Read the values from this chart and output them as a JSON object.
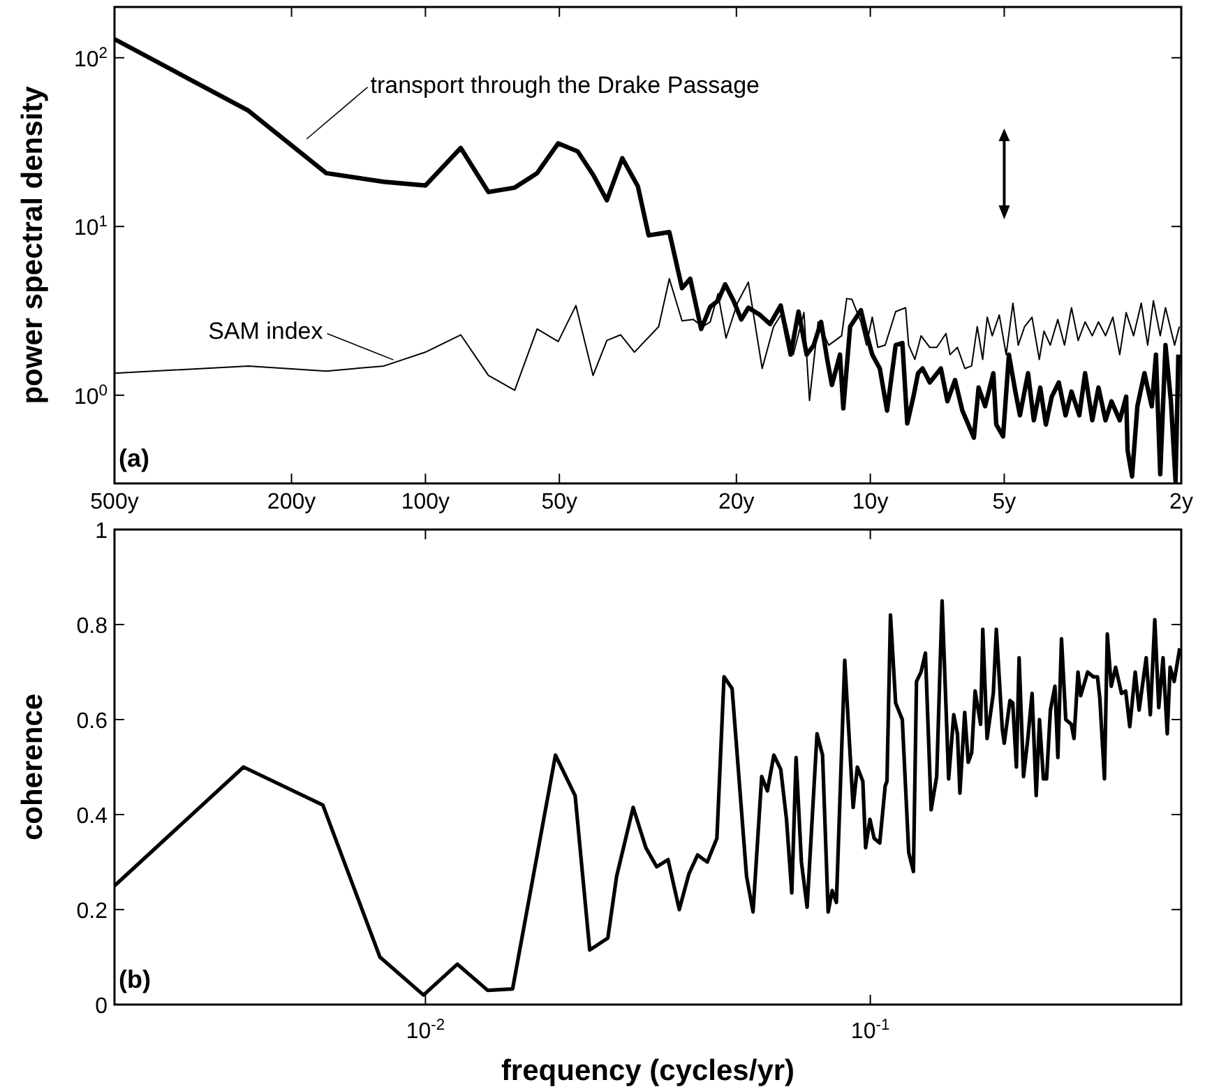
{
  "chart_data": [
    {
      "type": "line",
      "ylabel": "power spectral density",
      "log": "xy",
      "xlim": [
        500,
        2
      ],
      "ylim": [
        0.3,
        200
      ],
      "xticks": [
        {
          "value": 500,
          "label": "500y"
        },
        {
          "value": 200,
          "label": "200y"
        },
        {
          "value": 100,
          "label": "100y"
        },
        {
          "value": 50,
          "label": "50y"
        },
        {
          "value": 20,
          "label": "20y"
        },
        {
          "value": 10,
          "label": "10y"
        },
        {
          "value": 5,
          "label": "5y"
        },
        {
          "value": 2,
          "label": "2y"
        }
      ],
      "yticks": [
        {
          "value": 1,
          "label": "10$^{0}$"
        },
        {
          "value": 10,
          "label": "10$^{1}$"
        },
        {
          "value": 100,
          "label": "10$^{2}$"
        }
      ],
      "annotations": [
        "(a)"
      ],
      "series": [
        {
          "name": "transport through the Drake Passage",
          "color": "#000000",
          "x": [
            500,
            250,
            167,
            124,
            100,
            83.3,
            72.2,
            63.0,
            56.1,
            50.3,
            45.5,
            42.0,
            39.1,
            36.1,
            33.3,
            31.5,
            28.3,
            26.5,
            25.4,
            24.0,
            22.9,
            22.0,
            21.2,
            20.3,
            19.5,
            18.8,
            17.7,
            16.8,
            15.9,
            15.1,
            14.5,
            13.9,
            13.4,
            12.9,
            12.5,
            12.2,
            11.7,
            11.5,
            11.1,
            10.5,
            10.2,
            9.9,
            9.52,
            9.17,
            8.77,
            8.47,
            8.26,
            8.0,
            7.81,
            7.63,
            7.35,
            6.94,
            6.71,
            6.45,
            6.21,
            5.85,
            5.71,
            5.52,
            5.29,
            5.21,
            5.03,
            4.88,
            4.72,
            4.61,
            4.42,
            4.29,
            4.15,
            4.03,
            3.91,
            3.77,
            3.64,
            3.53,
            3.39,
            3.29,
            3.17,
            3.07,
            2.96,
            2.87,
            2.75,
            2.66,
            2.64,
            2.58,
            2.51,
            2.42,
            2.33,
            2.28,
            2.23,
            2.17,
            2.11,
            2.06,
            2.03
          ],
          "values": [
            129,
            48.6,
            20.7,
            18.4,
            17.5,
            29.2,
            16.0,
            17.0,
            20.7,
            31.1,
            27.9,
            20.3,
            14.3,
            25.4,
            17.3,
            8.86,
            9.26,
            4.31,
            4.9,
            2.47,
            3.34,
            3.63,
            4.54,
            3.63,
            2.81,
            3.3,
            2.99,
            2.64,
            3.4,
            1.74,
            3.13,
            1.74,
            1.98,
            2.72,
            1.63,
            1.15,
            1.74,
            0.836,
            2.55,
            3.19,
            2.32,
            1.74,
            1.44,
            0.81,
            1.98,
            2.04,
            0.68,
            0.98,
            1.35,
            1.44,
            1.19,
            1.44,
            0.92,
            1.23,
            0.81,
            0.56,
            1.11,
            0.86,
            1.35,
            0.67,
            0.57,
            1.74,
            1.05,
            0.76,
            1.35,
            0.71,
            1.11,
            0.67,
            0.98,
            1.19,
            0.76,
            1.05,
            0.76,
            1.35,
            0.71,
            1.11,
            0.71,
            0.92,
            0.71,
            0.98,
            0.47,
            0.33,
            0.86,
            1.35,
            0.86,
            1.74,
            0.34,
            1.98,
            0.92,
            0.31,
            1.74
          ]
        },
        {
          "name": "SAM index",
          "color": "#000000",
          "x": [
            500,
            250,
            167,
            124,
            100,
            83.3,
            72.2,
            63.0,
            56.1,
            50.3,
            45.9,
            42.0,
            39.1,
            36.4,
            33.9,
            29.9,
            28.3,
            26.5,
            25.0,
            23.8,
            22.9,
            22.0,
            21.1,
            19.9,
            18.8,
            17.5,
            16.5,
            15.7,
            14.9,
            14.1,
            13.7,
            13.1,
            12.4,
            11.6,
            11.3,
            11.0,
            10.5,
            10.2,
            9.9,
            9.62,
            9.26,
            8.77,
            8.33,
            8.2,
            7.94,
            7.69,
            7.35,
            7.09,
            6.76,
            6.62,
            6.37,
            6.13,
            5.92,
            5.75,
            5.59,
            5.46,
            5.32,
            5.13,
            4.95,
            4.78,
            4.65,
            4.5,
            4.33,
            4.17,
            4.07,
            3.94,
            3.79,
            3.66,
            3.53,
            3.41,
            3.29,
            3.17,
            3.07,
            2.96,
            2.85,
            2.75,
            2.66,
            2.56,
            2.46,
            2.38,
            2.31,
            2.23,
            2.17,
            2.07,
            2.02
          ],
          "values": [
            1.35,
            1.49,
            1.39,
            1.49,
            1.8,
            2.28,
            1.31,
            1.07,
            2.47,
            2.08,
            3.4,
            1.31,
            2.11,
            2.28,
            1.8,
            2.55,
            4.9,
            2.76,
            2.81,
            2.55,
            2.72,
            3.99,
            2.18,
            3.51,
            4.68,
            1.44,
            2.55,
            3.13,
            1.74,
            3.09,
            0.93,
            2.72,
            1.98,
            2.25,
            3.74,
            3.7,
            2.72,
            1.98,
            2.9,
            1.92,
            1.98,
            3.13,
            3.3,
            1.98,
            1.63,
            2.25,
            1.92,
            1.92,
            2.32,
            1.74,
            1.92,
            1.44,
            1.49,
            2.55,
            1.63,
            2.9,
            2.25,
            2.99,
            1.74,
            3.51,
            1.98,
            2.55,
            2.9,
            1.63,
            2.4,
            1.98,
            2.81,
            1.98,
            3.3,
            2.11,
            2.72,
            2.25,
            2.72,
            2.25,
            2.9,
            1.74,
            3.09,
            2.25,
            3.51,
            1.98,
            3.63,
            2.25,
            3.3,
            1.98,
            2.55
          ]
        }
      ]
    },
    {
      "type": "line",
      "xlabel": "frequency (cycles/yr)",
      "ylabel": "coherence",
      "log": "x",
      "xlim": [
        0.002,
        0.5
      ],
      "ylim": [
        0,
        1
      ],
      "xticks": [
        {
          "value": 0.01,
          "label": "10$^{-2}$"
        },
        {
          "value": 0.1,
          "label": "10$^{-1}$"
        }
      ],
      "yticks": [
        0,
        0.2,
        0.4,
        0.6,
        0.8,
        1
      ],
      "annotations": [
        "(b)"
      ],
      "series": [
        {
          "color": "#000000",
          "x": [
            0.002,
            0.0039,
            0.00588,
            0.0079,
            0.0099,
            0.0118,
            0.0138,
            0.0157,
            0.0196,
            0.0217,
            0.0234,
            0.0257,
            0.0269,
            0.0293,
            0.0313,
            0.0331,
            0.0351,
            0.0372,
            0.0391,
            0.0409,
            0.043,
            0.0452,
            0.0469,
            0.0489,
            0.0527,
            0.0545,
            0.057,
            0.0587,
            0.0607,
            0.0629,
            0.0648,
            0.0666,
            0.0681,
            0.07,
            0.0721,
            0.0759,
            0.0781,
            0.0804,
            0.0821,
            0.0839,
            0.0876,
            0.0915,
            0.0935,
            0.0962,
            0.0976,
            0.0998,
            0.102,
            0.105,
            0.108,
            0.109,
            0.111,
            0.114,
            0.118,
            0.122,
            0.125,
            0.127,
            0.13,
            0.133,
            0.137,
            0.141,
            0.145,
            0.15,
            0.154,
            0.157,
            0.159,
            0.163,
            0.166,
            0.169,
            0.172,
            0.177,
            0.179,
            0.183,
            0.189,
            0.192,
            0.198,
            0.2,
            0.206,
            0.209,
            0.213,
            0.216,
            0.221,
            0.226,
            0.231,
            0.236,
            0.24,
            0.245,
            0.249,
            0.254,
            0.26,
            0.264,
            0.269,
            0.275,
            0.283,
            0.287,
            0.293,
            0.297,
            0.308,
            0.317,
            0.324,
            0.328,
            0.336,
            0.341,
            0.348,
            0.356,
            0.367,
            0.375,
            0.383,
            0.394,
            0.402,
            0.417,
            0.426,
            0.436,
            0.445,
            0.455,
            0.465,
            0.472,
            0.482,
            0.496
          ],
          "values": [
            0.25,
            0.5,
            0.42,
            0.1,
            0.02,
            0.085,
            0.03,
            0.033,
            0.525,
            0.44,
            0.115,
            0.14,
            0.27,
            0.415,
            0.33,
            0.29,
            0.305,
            0.2,
            0.275,
            0.315,
            0.3,
            0.35,
            0.69,
            0.665,
            0.27,
            0.195,
            0.48,
            0.45,
            0.525,
            0.495,
            0.39,
            0.235,
            0.52,
            0.3,
            0.205,
            0.57,
            0.525,
            0.195,
            0.24,
            0.215,
            0.725,
            0.415,
            0.5,
            0.47,
            0.33,
            0.39,
            0.35,
            0.34,
            0.46,
            0.47,
            0.82,
            0.635,
            0.6,
            0.32,
            0.28,
            0.68,
            0.7,
            0.74,
            0.41,
            0.48,
            0.85,
            0.475,
            0.61,
            0.57,
            0.445,
            0.615,
            0.51,
            0.53,
            0.66,
            0.59,
            0.79,
            0.56,
            0.655,
            0.79,
            0.58,
            0.55,
            0.64,
            0.635,
            0.5,
            0.73,
            0.48,
            0.56,
            0.655,
            0.44,
            0.6,
            0.475,
            0.475,
            0.62,
            0.67,
            0.52,
            0.77,
            0.6,
            0.59,
            0.56,
            0.7,
            0.65,
            0.7,
            0.69,
            0.69,
            0.645,
            0.475,
            0.78,
            0.67,
            0.71,
            0.655,
            0.66,
            0.585,
            0.7,
            0.62,
            0.73,
            0.61,
            0.81,
            0.625,
            0.73,
            0.57,
            0.71,
            0.68,
            0.75
          ]
        }
      ]
    }
  ]
}
